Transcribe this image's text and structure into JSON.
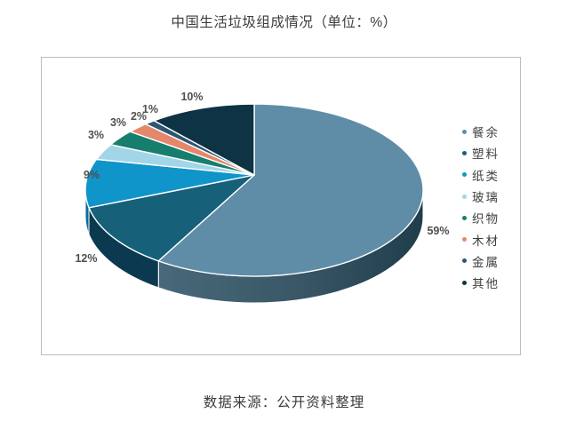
{
  "title": "中国生活垃圾组成情况（单位：%）",
  "footer": "数据来源：公开资料整理",
  "chart_data": {
    "type": "pie",
    "style": "3d",
    "title": "中国生活垃圾组成情况（单位：%）",
    "unit": "%",
    "categories": [
      "餐余",
      "塑料",
      "纸类",
      "玻璃",
      "织物",
      "木材",
      "金属",
      "其他"
    ],
    "values": [
      59,
      12,
      9,
      3,
      3,
      2,
      1,
      10
    ],
    "labels": [
      "59%",
      "12%",
      "9%",
      "3%",
      "3%",
      "2%",
      "1%",
      "10%"
    ],
    "colors": [
      "#5F8DA7",
      "#16607A",
      "#1095CB",
      "#A3D5E9",
      "#177E6E",
      "#E5876B",
      "#2E5571",
      "#0D3345"
    ],
    "side_colors": [
      "#3A5867",
      "#0B3A50",
      "#0A6D99",
      "#85BBD1",
      "#0E5B4E",
      "#C4664C",
      "#1E3F58",
      "#071F2C"
    ],
    "legend_position": "right",
    "data_labels": "outside",
    "source_note": "数据来源：公开资料整理"
  }
}
